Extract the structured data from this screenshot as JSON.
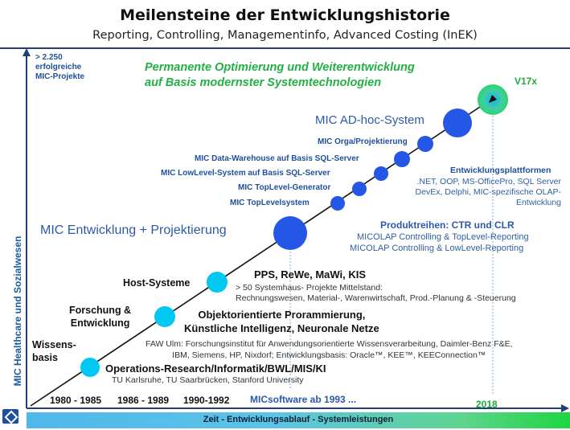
{
  "title": "Meilensteine der Entwicklungshistorie",
  "subtitle": "Reporting, Controlling, Managementinfo, Advanced Costing (InEK)",
  "side_label": "MIC Healthcare und Sozialwesen",
  "projects_count": "> 2.250\nerfolgreiche\nMIC-Projekte",
  "headline": "Permanente Optimierung und Weiterentwicklung\nauf Basis modernster Systemtechnologien",
  "version": "V17x",
  "year_2018": "2018",
  "modules": [
    "MIC AD-hoc-System",
    "MIC Orga/Projektierung",
    "MIC Data-Warehouse auf Basis SQL-Server",
    "MIC LowLevel-System  auf Basis SQL-Server",
    "MIC  TopLevel-Generator",
    "MIC  TopLevelsystem"
  ],
  "mic_entwicklung": "MIC Entwicklung + Projektierung",
  "platforms": {
    "title": "Entwicklungsplattformen",
    "body": ".NET, OOP, MS-OfficePro, SQL Server\nDevEx, Delphi, MIC-spezifische OLAP-\nEntwicklung"
  },
  "produktreihen": {
    "title": "Produktreihen: CTR und CLR",
    "line_1": "MICOLAP Controlling & TopLevel-Reporting",
    "line_2": "MICOLAP Controlling & LowLevel-Reporting"
  },
  "phases_left": [
    "Wissens-\nbasis",
    "Forschung &\nEntwicklung",
    "Host-Systeme"
  ],
  "phase_pps": {
    "title": "PPS, ReWe, MaWi, KIS",
    "text": "> 50 Systemhaus-  Projekte Mittelstand:\nRechnungswesen,  Material-, Warenwirtschaft, Prod.-Planung  & -Steuerung"
  },
  "phase_ai": {
    "title": "Objektorientierte Prorammierung,\nKünstliche Intelligenz, Neuronale Netze",
    "text": "FAW Ulm:  Forschungsinstitut  für Anwendungsorientierte  Wissensverarbeitung,  Daimler-Benz  F&E,\nIBM,  Siemens,  HP,  Nixdorf;  Entwicklungsbasis:  Oracle™,  KEE™,  KEEConnection™"
  },
  "phase_or": {
    "title": "Operations-Research/Informatik/BWL/MIS/KI",
    "text": "TU Karlsruhe,  TU Saarbrücken, Stanford University"
  },
  "years": [
    "1980 - 1985",
    "1986 - 1989",
    "1990-1992"
  ],
  "micsoftware": "MICsoftware ab 1993 ...",
  "bottom_bar": "Zeit  -  Entwicklungsablauf  -  Systemleistungen",
  "colors": {
    "axis": "#1f3f7a",
    "circle_cyan": "#00c8f0",
    "circle_blue": "#2457e6",
    "headline_green": "#22b043",
    "text_blue": "#2b5aa8"
  }
}
